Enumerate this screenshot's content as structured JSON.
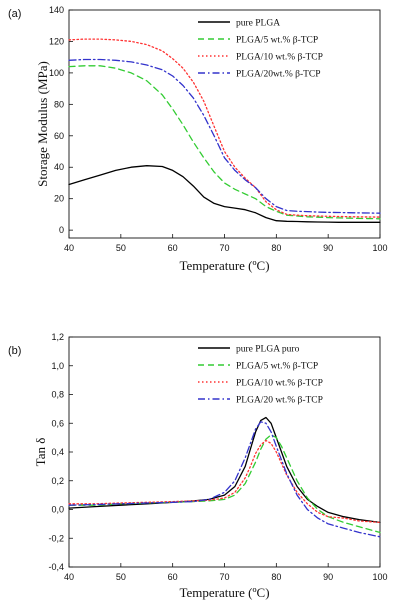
{
  "chart_data": [
    {
      "type": "line",
      "panel_label": "(a)",
      "xlabel": "Temperature (ºC)",
      "ylabel": "Storage Modulus (MPa)",
      "xlim": [
        40,
        100
      ],
      "ylim": [
        -5,
        140
      ],
      "xticks": [
        40,
        50,
        60,
        70,
        80,
        90,
        100
      ],
      "yticks": [
        0,
        20,
        40,
        60,
        80,
        100,
        120,
        140
      ],
      "tick_decimals": 0,
      "grid": false,
      "legend_position": "top-right",
      "series": [
        {
          "name": "pure PLGA",
          "color": "#000000",
          "dash": "solid",
          "x": [
            40,
            43,
            46,
            49,
            52,
            55,
            58,
            60,
            62,
            64,
            66,
            68,
            70,
            72,
            74,
            76,
            78,
            80,
            82,
            84,
            86,
            88,
            90,
            92,
            95,
            100
          ],
          "y": [
            29,
            32,
            35,
            38,
            40,
            41,
            40.5,
            38,
            34,
            28,
            21,
            17,
            15,
            14,
            13,
            11,
            8,
            6,
            5.6,
            5.5,
            5.3,
            5.2,
            5.1,
            5,
            5,
            5
          ]
        },
        {
          "name": "PLGA/5 wt.% β-TCP",
          "color": "#33cc33",
          "dash": "dashed",
          "x": [
            40,
            43,
            46,
            49,
            52,
            55,
            58,
            60,
            62,
            64,
            66,
            68,
            70,
            72,
            74,
            76,
            78,
            80,
            82,
            84,
            86,
            88,
            90,
            92,
            95,
            100
          ],
          "y": [
            104,
            104.5,
            104.5,
            103,
            100,
            95,
            86,
            77,
            67,
            56,
            46,
            37,
            30,
            26,
            23,
            20,
            15,
            12,
            9.5,
            9,
            8.5,
            8.2,
            8,
            7.8,
            7.5,
            7.2
          ]
        },
        {
          "name": "PLGA/10 wt.% β-TCP",
          "color": "#ff3333",
          "dash": "dotted",
          "x": [
            40,
            43,
            46,
            49,
            52,
            55,
            58,
            60,
            62,
            64,
            66,
            68,
            70,
            72,
            74,
            76,
            78,
            80,
            82,
            84,
            86,
            88,
            90,
            92,
            95,
            100
          ],
          "y": [
            121,
            121.5,
            121.5,
            121,
            120,
            118,
            114,
            109,
            103,
            94,
            82,
            66,
            50,
            40,
            33,
            27,
            18,
            13,
            10,
            9.5,
            9.2,
            9,
            8.8,
            8.7,
            8.5,
            8.3
          ]
        },
        {
          "name": "PLGA/20wt.% β-TCP",
          "color": "#3333cc",
          "dash": "dashdot",
          "x": [
            40,
            43,
            46,
            49,
            52,
            55,
            58,
            60,
            62,
            64,
            66,
            68,
            70,
            72,
            74,
            76,
            78,
            80,
            82,
            84,
            86,
            88,
            90,
            92,
            95,
            100
          ],
          "y": [
            108,
            108.5,
            108.5,
            108,
            107,
            105,
            102,
            98,
            92,
            84,
            73,
            60,
            46,
            38,
            32,
            27,
            20,
            15,
            12.5,
            12,
            11.8,
            11.5,
            11.3,
            11.2,
            11,
            10.8
          ]
        }
      ]
    },
    {
      "type": "line",
      "panel_label": "(b)",
      "xlabel": "Temperature (ºC)",
      "ylabel": "Tan δ",
      "xlim": [
        40,
        100
      ],
      "ylim": [
        -0.4,
        1.2
      ],
      "xticks": [
        40,
        50,
        60,
        70,
        80,
        90,
        100
      ],
      "yticks": [
        -0.4,
        -0.2,
        0.0,
        0.2,
        0.4,
        0.6,
        0.8,
        1.0,
        1.2
      ],
      "tick_decimals": 1,
      "tick_decimal_mark": ",",
      "grid": false,
      "legend_position": "top-right",
      "series": [
        {
          "name": "pure PLGA puro",
          "color": "#000000",
          "dash": "solid",
          "x": [
            40,
            45,
            50,
            55,
            60,
            64,
            67,
            70,
            72,
            74,
            75,
            76,
            77,
            78,
            79,
            80,
            82,
            84,
            86,
            88,
            90,
            93,
            96,
            100
          ],
          "y": [
            0.01,
            0.02,
            0.03,
            0.04,
            0.05,
            0.06,
            0.07,
            0.1,
            0.16,
            0.3,
            0.42,
            0.54,
            0.62,
            0.64,
            0.6,
            0.5,
            0.3,
            0.16,
            0.07,
            0.02,
            -0.02,
            -0.05,
            -0.07,
            -0.09
          ]
        },
        {
          "name": "PLGA/5 wt.% β-TCP",
          "color": "#33cc33",
          "dash": "dashed",
          "x": [
            40,
            45,
            50,
            55,
            60,
            64,
            67,
            70,
            72,
            74,
            76,
            77,
            78,
            79,
            80,
            81,
            82,
            84,
            86,
            88,
            90,
            93,
            96,
            100
          ],
          "y": [
            0.03,
            0.03,
            0.04,
            0.045,
            0.05,
            0.055,
            0.06,
            0.07,
            0.1,
            0.18,
            0.33,
            0.42,
            0.49,
            0.52,
            0.5,
            0.44,
            0.36,
            0.2,
            0.08,
            0.0,
            -0.05,
            -0.09,
            -0.12,
            -0.16
          ]
        },
        {
          "name": "PLGA/10 wt.% β-TCP",
          "color": "#ff3333",
          "dash": "dotted",
          "x": [
            40,
            45,
            50,
            55,
            60,
            64,
            67,
            70,
            72,
            74,
            75,
            76,
            77,
            78,
            79,
            80,
            82,
            84,
            86,
            88,
            90,
            93,
            96,
            100
          ],
          "y": [
            0.04,
            0.04,
            0.045,
            0.05,
            0.055,
            0.06,
            0.065,
            0.08,
            0.12,
            0.22,
            0.3,
            0.39,
            0.45,
            0.48,
            0.46,
            0.4,
            0.24,
            0.12,
            0.04,
            -0.02,
            -0.05,
            -0.06,
            -0.08,
            -0.09
          ]
        },
        {
          "name": "PLGA/20 wt.% β-TCP",
          "color": "#3333cc",
          "dash": "dashdot",
          "x": [
            40,
            45,
            50,
            55,
            60,
            64,
            67,
            70,
            72,
            74,
            75,
            76,
            77,
            78,
            79,
            80,
            82,
            84,
            86,
            88,
            90,
            93,
            96,
            100
          ],
          "y": [
            0.03,
            0.035,
            0.04,
            0.045,
            0.05,
            0.055,
            0.07,
            0.12,
            0.2,
            0.36,
            0.46,
            0.56,
            0.61,
            0.6,
            0.54,
            0.44,
            0.25,
            0.1,
            0.0,
            -0.06,
            -0.1,
            -0.13,
            -0.16,
            -0.19
          ]
        }
      ]
    }
  ]
}
